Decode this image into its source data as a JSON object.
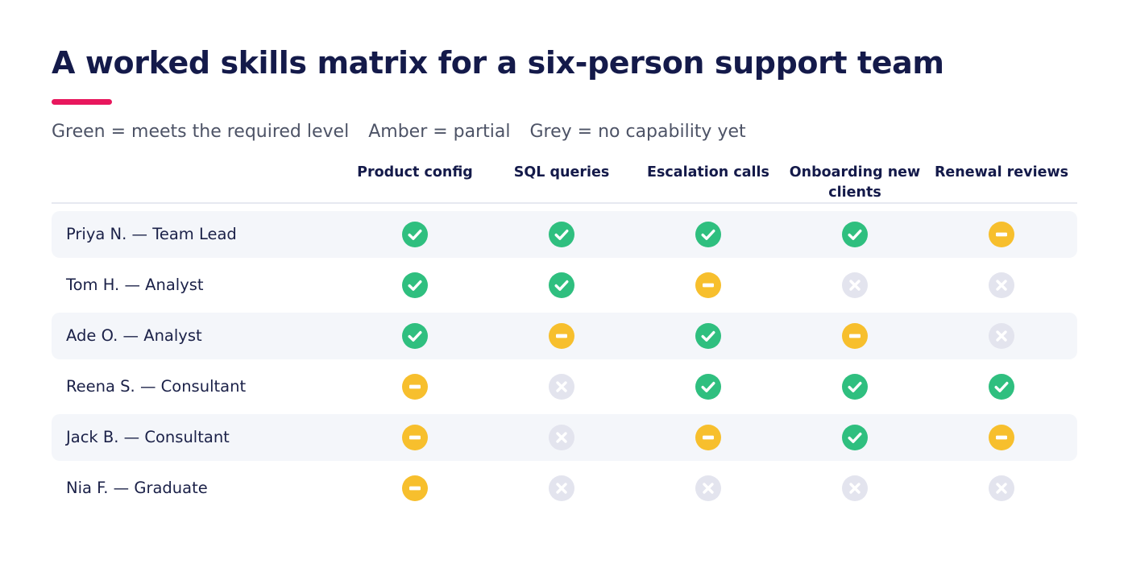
{
  "title": "A worked skills matrix for a six-person support team",
  "accent_color": "#e8175d",
  "legend": [
    {
      "text": "Green = meets the required level",
      "status": "meets"
    },
    {
      "text": "Amber = partial",
      "status": "partial"
    },
    {
      "text": "Grey = no capability yet",
      "status": "none"
    }
  ],
  "status_colors": {
    "meets": "#2fbf7f",
    "partial": "#f7bf2d",
    "none": "#e3e4ee"
  },
  "status_icons": {
    "meets": "check-circle-icon",
    "partial": "minus-circle-icon",
    "none": "x-circle-icon"
  },
  "columns": [
    "Product config",
    "SQL queries",
    "Escalation calls",
    "Onboarding new clients",
    "Renewal reviews"
  ],
  "rows": [
    {
      "label": "Priya N. — Team Lead",
      "levels": [
        "meets",
        "meets",
        "meets",
        "meets",
        "partial"
      ]
    },
    {
      "label": "Tom H. — Analyst",
      "levels": [
        "meets",
        "meets",
        "partial",
        "none",
        "none"
      ]
    },
    {
      "label": "Ade O. — Analyst",
      "levels": [
        "meets",
        "partial",
        "meets",
        "partial",
        "none"
      ]
    },
    {
      "label": "Reena S. — Consultant",
      "levels": [
        "partial",
        "none",
        "meets",
        "meets",
        "meets"
      ]
    },
    {
      "label": "Jack B. — Consultant",
      "levels": [
        "partial",
        "none",
        "partial",
        "meets",
        "partial"
      ]
    },
    {
      "label": "Nia F. — Graduate",
      "levels": [
        "partial",
        "none",
        "none",
        "none",
        "none"
      ]
    }
  ]
}
